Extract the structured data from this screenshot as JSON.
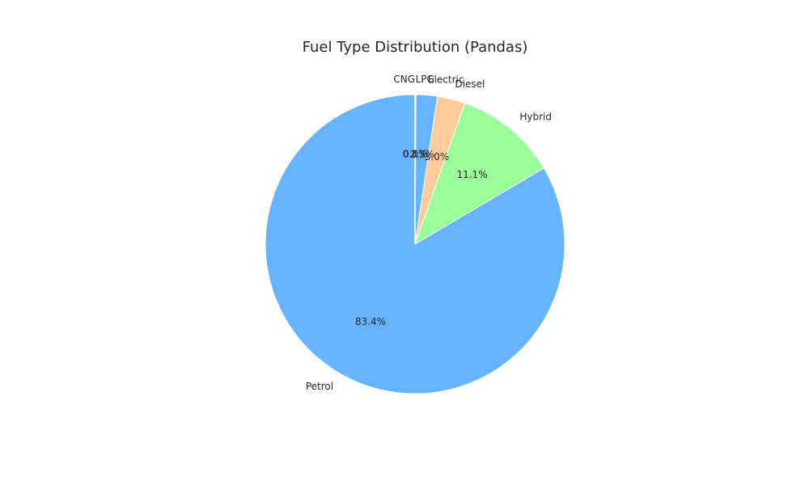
{
  "chart_data": {
    "type": "pie",
    "title": "Fuel Type Distribution (Pandas)",
    "start_angle_deg": 90,
    "direction": "clockwise",
    "slices": [
      {
        "label": "LPG",
        "value": 0.1,
        "pct_label": "0.1%",
        "color": "#66b3ff"
      },
      {
        "label": "Electric",
        "value": 2.3,
        "pct_label": "2.3%",
        "color": "#66b3ff"
      },
      {
        "label": "Diesel",
        "value": 3.0,
        "pct_label": "3.0%",
        "color": "#ffcc99"
      },
      {
        "label": "Hybrid",
        "value": 11.1,
        "pct_label": "11.1%",
        "color": "#99ff99"
      },
      {
        "label": "Petrol",
        "value": 83.4,
        "pct_label": "83.4%",
        "color": "#66b3ff"
      },
      {
        "label": "CNG",
        "value": 0.0,
        "pct_label": "0.0%",
        "color": "#ff9999"
      }
    ]
  }
}
